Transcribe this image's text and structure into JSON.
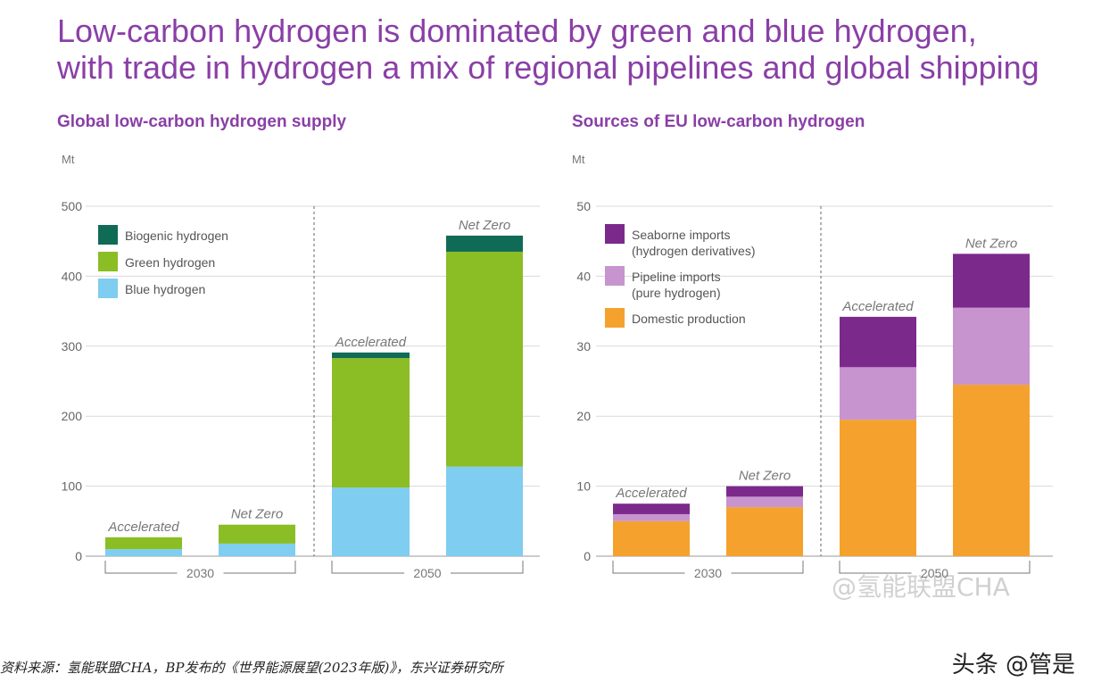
{
  "headline": {
    "line1": "Low-carbon hydrogen is dominated by green and blue hydrogen,",
    "line2": "with trade in hydrogen a mix of regional pipelines and global shipping"
  },
  "chart_data": [
    {
      "type": "bar",
      "stacked": true,
      "title": "Global low-carbon hydrogen supply",
      "ylabel": "Mt",
      "ylim": [
        0,
        500
      ],
      "yticks": [
        0,
        100,
        200,
        300,
        400,
        500
      ],
      "groups": [
        "2030",
        "2050"
      ],
      "bar_labels": [
        "Accelerated",
        "Net Zero",
        "Accelerated",
        "Net Zero"
      ],
      "bar_groups": [
        0,
        0,
        1,
        1
      ],
      "series": [
        {
          "name": "Blue hydrogen",
          "color": "#7fcdf0",
          "values": [
            10,
            18,
            98,
            128
          ]
        },
        {
          "name": "Green hydrogen",
          "color": "#8bbd25",
          "values": [
            17,
            27,
            185,
            307
          ]
        },
        {
          "name": "Biogenic hydrogen",
          "color": "#0f6b56",
          "values": [
            0,
            0,
            8,
            23
          ]
        }
      ],
      "legend": [
        "Biogenic hydrogen",
        "Green hydrogen",
        "Blue hydrogen"
      ],
      "legend_position": "top-left"
    },
    {
      "type": "bar",
      "stacked": true,
      "title": "Sources of EU low-carbon hydrogen",
      "ylabel": "Mt",
      "ylim": [
        0,
        50
      ],
      "yticks": [
        0,
        10,
        20,
        30,
        40,
        50
      ],
      "groups": [
        "2030",
        "2050"
      ],
      "bar_labels": [
        "Accelerated",
        "Net Zero",
        "Accelerated",
        "Net Zero"
      ],
      "bar_groups": [
        0,
        0,
        1,
        1
      ],
      "series": [
        {
          "name": "Domestic production",
          "color": "#f4a22d",
          "values": [
            5,
            7,
            19.5,
            24.5
          ]
        },
        {
          "name": "Pipeline imports (pure hydrogen)",
          "color": "#c794cf",
          "values": [
            1,
            1.5,
            7.5,
            11
          ]
        },
        {
          "name": "Seaborne imports (hydrogen derivatives)",
          "color": "#7b2a8c",
          "values": [
            1.5,
            1.5,
            7.2,
            7.7
          ]
        }
      ],
      "legend": [
        [
          "Seaborne imports",
          "(hydrogen derivatives)"
        ],
        [
          "Pipeline imports",
          "(pure hydrogen)"
        ],
        [
          "Domestic production"
        ]
      ],
      "legend_colors": [
        "#7b2a8c",
        "#c794cf",
        "#f4a22d"
      ],
      "legend_position": "top-left"
    }
  ],
  "footer": {
    "source": "资料来源：氢能联盟CHA，BP发布的《世界能源展望(2023年版)》，东兴证券研究所",
    "brand": "头条 @管是",
    "watermark": "@氢能联盟CHA"
  }
}
